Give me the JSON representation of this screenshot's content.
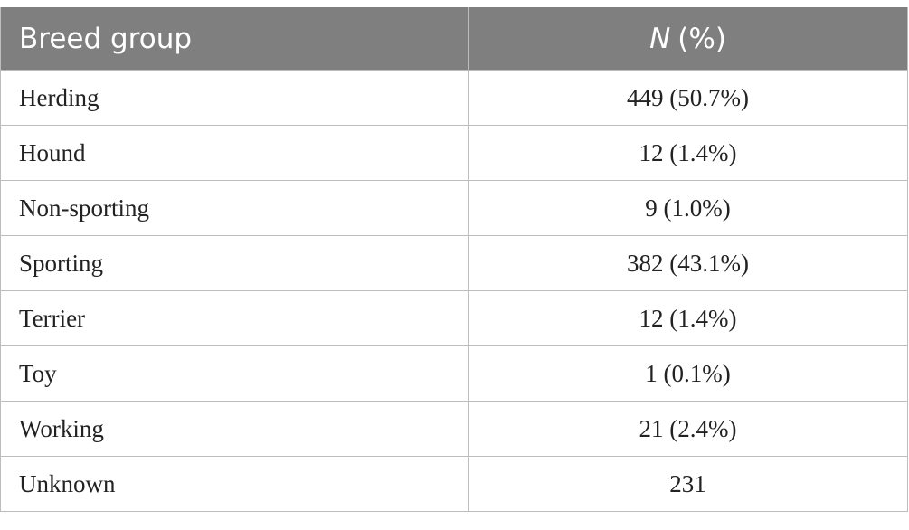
{
  "table": {
    "header": [
      "Breed group",
      {
        "italic": "N",
        "rest": "(%)"
      }
    ],
    "rows": [
      [
        "Herding",
        "449 (50.7%)"
      ],
      [
        "Hound",
        "12 (1.4%)"
      ],
      [
        "Non-sporting",
        "9 (1.0%)"
      ],
      [
        "Sporting",
        "382 (43.1%)"
      ],
      [
        "Terrier",
        "12 (1.4%)"
      ],
      [
        "Toy",
        "1 (0.1%)"
      ],
      [
        "Working",
        "21 (2.4%)"
      ],
      [
        "Unknown",
        "231"
      ]
    ]
  }
}
